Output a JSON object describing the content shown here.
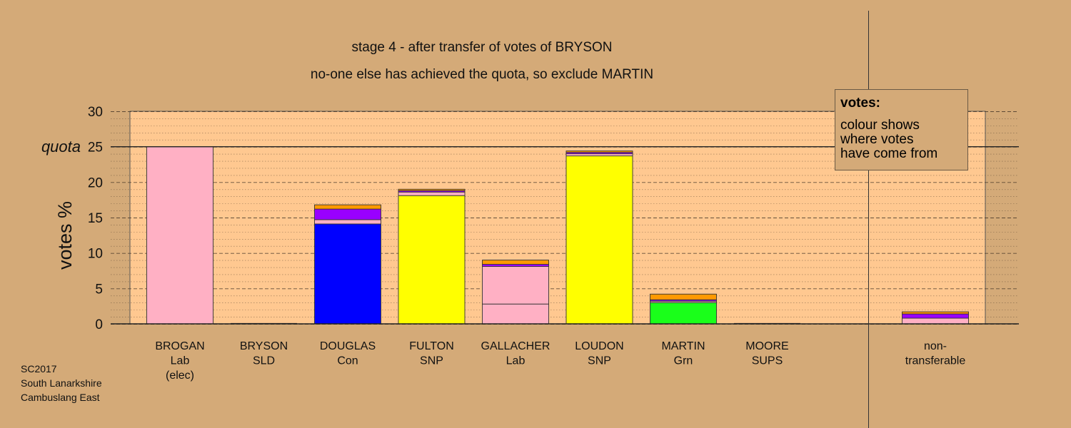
{
  "title": {
    "line1": "stage 4 - after transfer of votes of BRYSON",
    "line2": "no-one else has achieved the quota, so exclude MARTIN"
  },
  "footer": {
    "lines": [
      "SC2017",
      "South Lanarkshire",
      "Cambuslang East"
    ]
  },
  "legend": {
    "title": "votes:",
    "lines": [
      "colour shows",
      "where votes",
      "have come from"
    ]
  },
  "chart_data": {
    "type": "bar",
    "stacked": true,
    "ylabel": "votes %",
    "ylim": [
      0,
      30
    ],
    "yticks": [
      0,
      5,
      10,
      15,
      20,
      25,
      30
    ],
    "quota": 25,
    "quota_label": "quota",
    "grid": "dashed major, dotted minor",
    "colors": {
      "Lab": "#ffb0c4",
      "Con": "#0000ff",
      "SNP": "#ffff00",
      "Grn": "#1aff1a",
      "SLD": "#9900ff",
      "SUPS": "#ff9900",
      "background": "#d4aa78",
      "plot": "#ffc890"
    },
    "categories": [
      {
        "lines": [
          "BROGAN",
          "Lab",
          "(elec)"
        ]
      },
      {
        "lines": [
          "BRYSON",
          "SLD"
        ]
      },
      {
        "lines": [
          "DOUGLAS",
          "Con"
        ]
      },
      {
        "lines": [
          "FULTON",
          "SNP"
        ]
      },
      {
        "lines": [
          "GALLACHER",
          "Lab"
        ]
      },
      {
        "lines": [
          "LOUDON",
          "SNP"
        ]
      },
      {
        "lines": [
          "MARTIN",
          "Grn"
        ]
      },
      {
        "lines": [
          "MOORE",
          "SUPS"
        ]
      },
      {
        "lines": [
          "non-",
          "transferable"
        ]
      }
    ],
    "bars": [
      [
        {
          "party": "Lab",
          "value": 25.0
        }
      ],
      [],
      [
        {
          "party": "Con",
          "value": 14.1
        },
        {
          "party": "Lab",
          "value": 0.6
        },
        {
          "party": "SLD",
          "value": 1.5
        },
        {
          "party": "SUPS",
          "value": 0.6
        }
      ],
      [
        {
          "party": "SNP",
          "value": 18.1
        },
        {
          "party": "Lab",
          "value": 0.5
        },
        {
          "party": "SLD",
          "value": 0.2
        },
        {
          "party": "SUPS",
          "value": 0.2
        }
      ],
      [
        {
          "party": "Lab",
          "value": 2.8
        },
        {
          "party": "Lab",
          "value": 5.3
        },
        {
          "party": "SLD",
          "value": 0.3
        },
        {
          "party": "SUPS",
          "value": 0.6
        }
      ],
      [
        {
          "party": "SNP",
          "value": 23.7
        },
        {
          "party": "Lab",
          "value": 0.3
        },
        {
          "party": "SLD",
          "value": 0.2
        },
        {
          "party": "SUPS",
          "value": 0.2
        }
      ],
      [
        {
          "party": "Grn",
          "value": 3.0
        },
        {
          "party": "Lab",
          "value": 0.2
        },
        {
          "party": "SLD",
          "value": 0.2
        },
        {
          "party": "SUPS",
          "value": 0.8
        }
      ],
      [],
      [
        {
          "party": "Lab",
          "value": 0.8
        },
        {
          "party": "SLD",
          "value": 0.6
        },
        {
          "party": "SUPS",
          "value": 0.3
        }
      ]
    ]
  }
}
